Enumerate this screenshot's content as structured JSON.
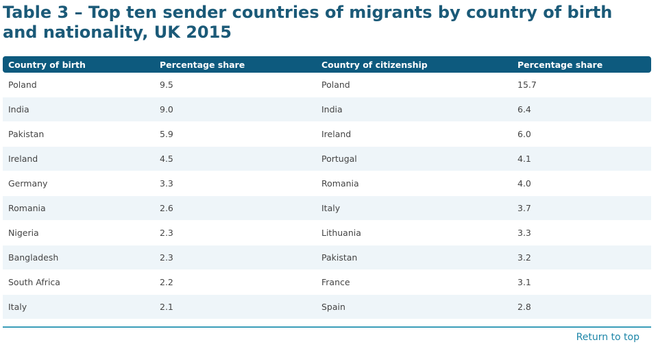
{
  "header": {
    "title": "Table 3 – Top ten sender countries of migrants by country of birth and nationality, UK 2015"
  },
  "table": {
    "columns": [
      "Country of birth",
      "Percentage share",
      "Country of citizenship",
      "Percentage share"
    ],
    "rows": [
      [
        "Poland",
        "9.5",
        "Poland",
        "15.7"
      ],
      [
        "India",
        "9.0",
        "India",
        "6.4"
      ],
      [
        "Pakistan",
        "5.9",
        "Ireland",
        "6.0"
      ],
      [
        "Ireland",
        "4.5",
        "Portugal",
        "4.1"
      ],
      [
        "Germany",
        "3.3",
        "Romania",
        "4.0"
      ],
      [
        "Romania",
        "2.6",
        "Italy",
        "3.7"
      ],
      [
        "Nigeria",
        "2.3",
        "Lithuania",
        "3.3"
      ],
      [
        "Bangladesh",
        "2.3",
        "Pakistan",
        "3.2"
      ],
      [
        "South Africa",
        "2.2",
        "France",
        "3.1"
      ],
      [
        "Italy",
        "2.1",
        "Spain",
        "2.8"
      ]
    ]
  },
  "footer": {
    "link": "Return to top"
  }
}
